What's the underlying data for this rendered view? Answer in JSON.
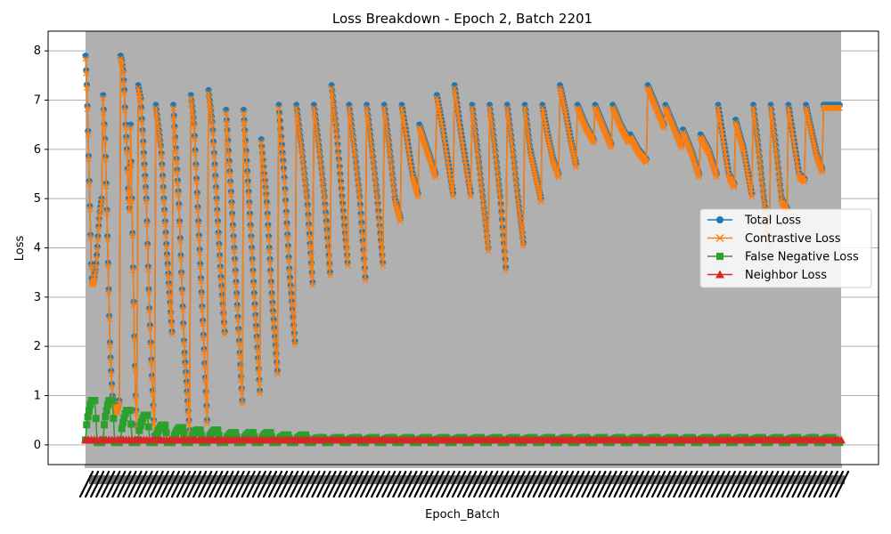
{
  "chart_data": {
    "type": "line",
    "title": "Loss Breakdown - Epoch 2, Batch 2201",
    "xlabel": "Epoch_Batch",
    "ylabel": "Loss",
    "ylim": [
      -0.4,
      8.4
    ],
    "yticks": [
      0,
      1,
      2,
      3,
      4,
      5,
      6,
      7,
      8
    ],
    "ytick_labels": [
      "0",
      "1",
      "2",
      "3",
      "4",
      "5",
      "6",
      "7",
      "8"
    ],
    "grid": "y-only",
    "legend_placement": "center-right",
    "plot_background": "#b0b0b0",
    "x_points_count": 2201,
    "x_tick_labels_note_shown": "dense overlapping rotated labels",
    "series": [
      {
        "name": "Total Loss",
        "color": "#1f77b4",
        "marker": "circle",
        "segments": [
          [
            7.9,
            7.2,
            6.0,
            4.8,
            3.4,
            3.3,
            3.4,
            3.6,
            4.0,
            4.5,
            4.8,
            5.0
          ],
          [
            7.1,
            6.0,
            4.0,
            2.0,
            1.0,
            0.8,
            0.7,
            0.9
          ],
          [
            7.9,
            7.8,
            7.6,
            7.2,
            6.5,
            6.0,
            5.2,
            4.8,
            6.5,
            5.0,
            3.6,
            2.2,
            1.0,
            0.4
          ],
          [
            7.3,
            7.0,
            6.0,
            5.0,
            3.0,
            1.5,
            0.2
          ],
          [
            6.9,
            6.0,
            4.0,
            2.3
          ],
          [
            6.9,
            5.0,
            2.0,
            0.3
          ],
          [
            7.1,
            6.5,
            5.0,
            3.5,
            2.0,
            0.5
          ],
          [
            7.2,
            6.5,
            5.0,
            3.5,
            2.3
          ],
          [
            6.8,
            5.0,
            3.0,
            0.9
          ],
          [
            6.8,
            5.0,
            3.0,
            1.1
          ],
          [
            6.2,
            5.0,
            3.0,
            1.5
          ],
          [
            6.9,
            5.5,
            3.5,
            2.1
          ],
          [
            6.9,
            6.0,
            5.0,
            3.3
          ],
          [
            6.9,
            6.0,
            5.0,
            3.5
          ],
          [
            7.3,
            6.3,
            5.0,
            3.7
          ],
          [
            6.9,
            6.0,
            5.0,
            3.4
          ],
          [
            6.9,
            6.0,
            5.0,
            3.7
          ],
          [
            6.9,
            6.0,
            5.0,
            4.6
          ],
          [
            6.9,
            6.2,
            5.5,
            5.1
          ],
          [
            6.5,
            6.0,
            5.5
          ],
          [
            7.1,
            6.5,
            5.8,
            5.1
          ],
          [
            7.3,
            6.5,
            5.8,
            5.1
          ],
          [
            6.9,
            6.0,
            5.0,
            4.0
          ],
          [
            6.9,
            6.0,
            5.0,
            3.6
          ],
          [
            6.9,
            6.0,
            5.0,
            4.1
          ],
          [
            6.9,
            6.0,
            5.5,
            5.0
          ],
          [
            6.9,
            6.3,
            5.8,
            5.5
          ],
          [
            7.3,
            6.8,
            6.2,
            5.7
          ],
          [
            6.9,
            6.5,
            6.2
          ],
          [
            6.9,
            6.5,
            6.1
          ],
          [
            6.9,
            6.5,
            6.2
          ],
          [
            6.3,
            6.0,
            5.8
          ],
          [
            7.3,
            6.9,
            6.5
          ],
          [
            6.9,
            6.5,
            6.1
          ],
          [
            6.4,
            6.0,
            5.5
          ],
          [
            6.3,
            6.0,
            5.5
          ],
          [
            6.9,
            6.2,
            5.5,
            5.3
          ],
          [
            6.6,
            6.0,
            5.1
          ],
          [
            6.9,
            6.0,
            5.0,
            4.1
          ],
          [
            6.9,
            6.0,
            5.0,
            4.8
          ],
          [
            6.9,
            6.2,
            5.5,
            5.4
          ],
          [
            6.9,
            6.4,
            5.9,
            5.6
          ],
          [
            6.9
          ]
        ]
      },
      {
        "name": "Contrastive Loss",
        "color": "#ff7f0e",
        "marker": "x",
        "tracks_total_loss_minus": 0.06
      },
      {
        "name": "False Negative Loss",
        "color": "#2ca02c",
        "marker": "square",
        "peaks": [
          0.9,
          0.9,
          0.7,
          0.6,
          0.4,
          0.35,
          0.3,
          0.3,
          0.25,
          0.25,
          0.25,
          0.2,
          0.2,
          0.15,
          0.15,
          0.15,
          0.15,
          0.15,
          0.15,
          0.15,
          0.15,
          0.15,
          0.15,
          0.15,
          0.15,
          0.15,
          0.15,
          0.15,
          0.15,
          0.15,
          0.15,
          0.15,
          0.15,
          0.15,
          0.15,
          0.15,
          0.15,
          0.15,
          0.15,
          0.15,
          0.15,
          0.15,
          0.15
        ],
        "baseline": 0.1
      },
      {
        "name": "Neighbor Loss",
        "color": "#d62728",
        "marker": "triangle",
        "constant_value": 0.1
      }
    ]
  }
}
